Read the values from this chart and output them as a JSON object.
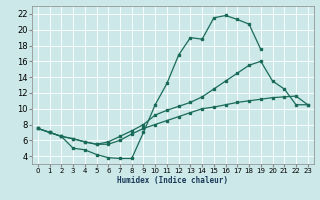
{
  "xlabel": "Humidex (Indice chaleur)",
  "bg_color": "#cce8e8",
  "grid_color": "#b0d0d0",
  "line_color": "#1a6b5a",
  "xlim": [
    -0.5,
    23.5
  ],
  "ylim": [
    3,
    23
  ],
  "xticks": [
    0,
    1,
    2,
    3,
    4,
    5,
    6,
    7,
    8,
    9,
    10,
    11,
    12,
    13,
    14,
    15,
    16,
    17,
    18,
    19,
    20,
    21,
    22,
    23
  ],
  "yticks": [
    4,
    6,
    8,
    10,
    12,
    14,
    16,
    18,
    20,
    22
  ],
  "line1_x": [
    0,
    1,
    2,
    3,
    4,
    5,
    6,
    7,
    8,
    9,
    10,
    11,
    12,
    13,
    14,
    15,
    16,
    17,
    18,
    19
  ],
  "line1_y": [
    7.5,
    7.0,
    6.5,
    5.0,
    4.8,
    4.2,
    3.8,
    3.7,
    3.7,
    7.0,
    10.5,
    13.2,
    16.8,
    19.0,
    18.8,
    21.5,
    21.8,
    21.3,
    20.7,
    17.5
  ],
  "line2_x": [
    0,
    1,
    2,
    3,
    4,
    5,
    6,
    7,
    8,
    9,
    10,
    11,
    12,
    13,
    14,
    15,
    16,
    17,
    18,
    19,
    20,
    21,
    22,
    23
  ],
  "line2_y": [
    7.5,
    7.0,
    6.5,
    6.2,
    5.8,
    5.5,
    5.8,
    6.5,
    7.2,
    8.0,
    9.2,
    9.8,
    10.3,
    10.8,
    11.5,
    12.5,
    13.5,
    14.5,
    15.5,
    16.0,
    13.5,
    12.5,
    10.5,
    10.5
  ],
  "line3_x": [
    0,
    1,
    2,
    3,
    4,
    5,
    6,
    7,
    8,
    9,
    10,
    11,
    12,
    13,
    14,
    15,
    16,
    17,
    18,
    19,
    20,
    21,
    22,
    23
  ],
  "line3_y": [
    7.5,
    7.0,
    6.5,
    6.2,
    5.8,
    5.5,
    5.5,
    6.0,
    6.8,
    7.5,
    8.0,
    8.5,
    9.0,
    9.5,
    10.0,
    10.2,
    10.5,
    10.8,
    11.0,
    11.2,
    11.4,
    11.5,
    11.6,
    10.5
  ]
}
